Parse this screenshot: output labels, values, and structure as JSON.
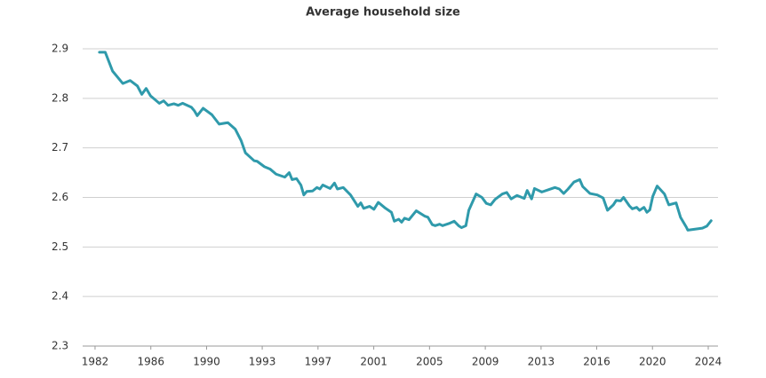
{
  "chart_data": {
    "type": "line",
    "title": "Average household size",
    "x": [
      1982.3,
      1982.7,
      1983.2,
      1983.9,
      1984.4,
      1984.9,
      1985.2,
      1985.5,
      1985.8,
      1986.4,
      1986.7,
      1987.0,
      1987.4,
      1987.7,
      1988.0,
      1988.6,
      1988.8,
      1989.0,
      1989.4,
      1990.0,
      1990.5,
      1991.1,
      1991.6,
      1992.0,
      1992.3,
      1992.9,
      1993.1,
      1993.6,
      1994.0,
      1994.4,
      1995.0,
      1995.3,
      1995.5,
      1995.8,
      1996.1,
      1996.3,
      1996.5,
      1996.9,
      1997.2,
      1997.4,
      1997.6,
      1998.1,
      1998.4,
      1998.6,
      1999.0,
      1999.5,
      2000.0,
      2000.2,
      2000.4,
      2000.8,
      2001.1,
      2001.4,
      2001.9,
      2002.3,
      2002.5,
      2002.8,
      2003.0,
      2003.2,
      2003.5,
      2004.0,
      2004.6,
      2004.8,
      2005.1,
      2005.3,
      2005.6,
      2005.8,
      2006.3,
      2006.6,
      2006.9,
      2007.1,
      2007.4,
      2007.6,
      2008.1,
      2008.5,
      2008.8,
      2009.1,
      2009.4,
      2009.9,
      2010.2,
      2010.5,
      2010.9,
      2011.4,
      2011.6,
      2011.9,
      2012.1,
      2012.6,
      2013.1,
      2013.5,
      2013.8,
      2014.1,
      2014.4,
      2014.8,
      2015.2,
      2015.4,
      2015.9,
      2016.4,
      2016.8,
      2017.1,
      2017.5,
      2017.7,
      2018.0,
      2018.2,
      2018.6,
      2018.8,
      2019.1,
      2019.3,
      2019.6,
      2019.8,
      2020.0,
      2020.2,
      2020.5,
      2021.0,
      2021.3,
      2021.8,
      2022.1,
      2022.5,
      2022.6,
      2023.6,
      2023.9,
      2024.2
    ],
    "series": [
      {
        "color": "#2f9aab",
        "values": [
          2.893,
          2.893,
          2.855,
          2.83,
          2.836,
          2.825,
          2.808,
          2.82,
          2.805,
          2.79,
          2.795,
          2.786,
          2.789,
          2.786,
          2.79,
          2.782,
          2.775,
          2.765,
          2.78,
          2.767,
          2.748,
          2.751,
          2.738,
          2.715,
          2.69,
          2.674,
          2.673,
          2.662,
          2.657,
          2.647,
          2.641,
          2.65,
          2.636,
          2.638,
          2.625,
          2.605,
          2.612,
          2.613,
          2.62,
          2.617,
          2.625,
          2.618,
          2.629,
          2.617,
          2.62,
          2.605,
          2.582,
          2.589,
          2.578,
          2.582,
          2.576,
          2.59,
          2.578,
          2.57,
          2.552,
          2.556,
          2.55,
          2.558,
          2.555,
          2.573,
          2.562,
          2.56,
          2.545,
          2.543,
          2.546,
          2.543,
          2.548,
          2.552,
          2.543,
          2.539,
          2.543,
          2.574,
          2.607,
          2.6,
          2.588,
          2.585,
          2.596,
          2.607,
          2.61,
          2.597,
          2.604,
          2.598,
          2.614,
          2.597,
          2.618,
          2.611,
          2.616,
          2.62,
          2.617,
          2.608,
          2.617,
          2.631,
          2.636,
          2.622,
          2.608,
          2.605,
          2.599,
          2.574,
          2.585,
          2.594,
          2.593,
          2.6,
          2.583,
          2.577,
          2.58,
          2.574,
          2.58,
          2.57,
          2.575,
          2.602,
          2.623,
          2.607,
          2.585,
          2.589,
          2.56,
          2.54,
          2.534,
          2.538,
          2.542,
          2.553
        ]
      }
    ],
    "xlim": [
      1981.15,
      2024.67
    ],
    "xticks": [
      {
        "value": 1982,
        "label": "1982"
      },
      {
        "value": 1985.82,
        "label": "1986"
      },
      {
        "value": 1989.64,
        "label": "1990"
      },
      {
        "value": 1993.45,
        "label": "1993"
      },
      {
        "value": 1997.27,
        "label": "1997"
      },
      {
        "value": 2001.09,
        "label": "2001"
      },
      {
        "value": 2004.91,
        "label": "2005"
      },
      {
        "value": 2008.73,
        "label": "2009"
      },
      {
        "value": 2012.55,
        "label": "2013"
      },
      {
        "value": 2016.36,
        "label": "2016"
      },
      {
        "value": 2020.18,
        "label": "2020"
      },
      {
        "value": 2024,
        "label": "2024"
      }
    ],
    "ylim": [
      2.3,
      2.9
    ],
    "yticks": [
      2.3,
      2.4,
      2.5,
      2.6,
      2.7,
      2.8,
      2.9
    ],
    "grid": true
  }
}
